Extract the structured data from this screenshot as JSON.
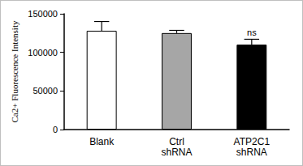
{
  "chart_data": {
    "type": "bar",
    "y_label": "Ca2+ Fluorescence Intensity",
    "categories": [
      "Blank",
      "Ctrl\nshRNA",
      "ATP2C1\nshRNA"
    ],
    "values": [
      128000,
      125000,
      110000
    ],
    "errors": [
      12000,
      3500,
      7000
    ],
    "colors": [
      "#ffffff",
      "#a6a6a6",
      "#000000"
    ],
    "ylim": [
      0,
      150000
    ],
    "yticks": [
      0,
      50000,
      100000,
      150000
    ],
    "grid": false,
    "annotations": [
      {
        "x": "ATP2C1\nshRNA",
        "text": "ns"
      }
    ]
  }
}
